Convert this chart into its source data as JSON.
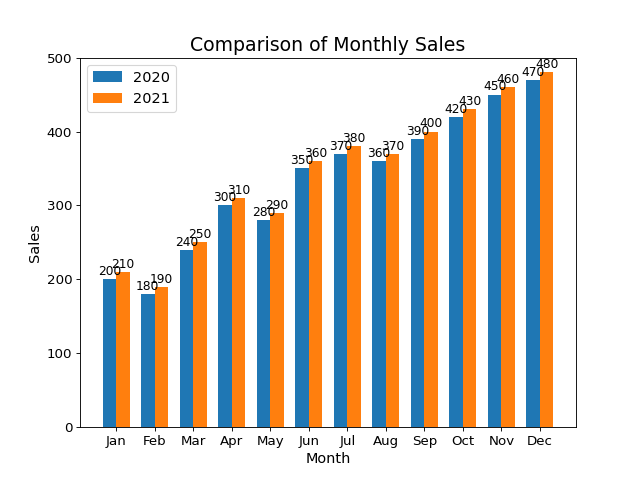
{
  "title": "Comparison of Monthly Sales",
  "xlabel": "Month",
  "ylabel": "Sales",
  "months": [
    "Jan",
    "Feb",
    "Mar",
    "Apr",
    "May",
    "Jun",
    "Jul",
    "Aug",
    "Sep",
    "Oct",
    "Nov",
    "Dec"
  ],
  "sales_2020": [
    200,
    180,
    240,
    300,
    280,
    350,
    370,
    360,
    390,
    420,
    450,
    470
  ],
  "sales_2021": [
    210,
    190,
    250,
    310,
    290,
    360,
    380,
    370,
    400,
    430,
    460,
    480
  ],
  "color_2020": "#1f77b4",
  "color_2021": "#ff7f0e",
  "legend_labels": [
    "2020",
    "2021"
  ],
  "ylim": [
    0,
    500
  ],
  "yticks": [
    0,
    100,
    200,
    300,
    400,
    500
  ],
  "bar_width": 0.35,
  "title_fontsize": 17,
  "label_fontsize": 13,
  "tick_fontsize": 12,
  "annot_fontsize": 11,
  "legend_fontsize": 13,
  "figwidth": 8.0,
  "figheight": 6.0,
  "dpi": 80
}
